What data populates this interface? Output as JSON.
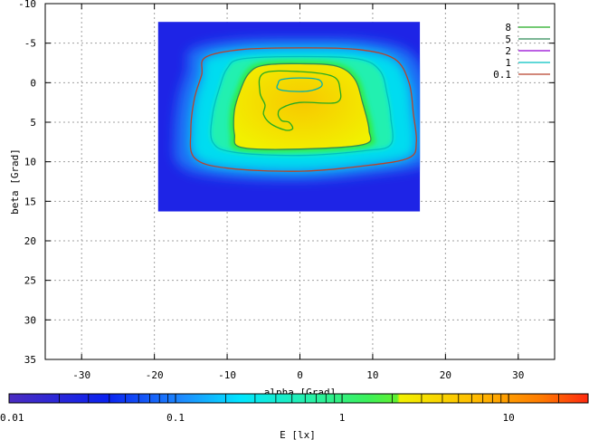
{
  "chart_data": {
    "type": "heatmap",
    "title": "",
    "xlabel": "alpha [Grad]",
    "ylabel": "beta [Grad]",
    "xlim": [
      -35,
      35
    ],
    "ylim": [
      -10,
      35
    ],
    "y_inverted": true,
    "grid": true,
    "x_ticks": [
      -30,
      -20,
      -10,
      0,
      10,
      20,
      30
    ],
    "y_ticks": [
      -10,
      -5,
      0,
      5,
      10,
      15,
      20,
      25,
      30,
      35
    ],
    "data_extent": {
      "alpha": [
        -19.5,
        16.5
      ],
      "beta": [
        -7.7,
        16.3
      ]
    },
    "peak": {
      "alpha": -1,
      "beta": 0.3
    },
    "legend": {
      "placement": "top-right",
      "entries": [
        {
          "label": "8",
          "color": "#22aa22"
        },
        {
          "label": "5",
          "color": "#2e8b57"
        },
        {
          "label": "2",
          "color": "#9400d3"
        },
        {
          "label": "1",
          "color": "#00c0c0"
        },
        {
          "label": "0.1",
          "color": "#b8422a"
        }
      ]
    },
    "contours": [
      {
        "level": 0.1,
        "color": "#b8422a",
        "points": [
          [
            -13,
            -3.2
          ],
          [
            -8,
            -4.2
          ],
          [
            0,
            -4.4
          ],
          [
            8,
            -4.2
          ],
          [
            13,
            -3.0
          ],
          [
            15,
            0
          ],
          [
            15.6,
            4
          ],
          [
            16.0,
            7.5
          ],
          [
            15.0,
            9.5
          ],
          [
            9,
            10.5
          ],
          [
            0,
            11.2
          ],
          [
            -10,
            10.8
          ],
          [
            -14.5,
            9.5
          ],
          [
            -15,
            6
          ],
          [
            -14.5,
            2
          ],
          [
            -13.5,
            -1
          ]
        ]
      },
      {
        "level": 1,
        "color": "#00c0c0",
        "points": [
          [
            -8,
            -3.0
          ],
          [
            0,
            -3.3
          ],
          [
            8,
            -3.0
          ],
          [
            11,
            -1.5
          ],
          [
            12,
            1.5
          ],
          [
            12.5,
            4.5
          ],
          [
            12.5,
            7.8
          ],
          [
            9,
            8.6
          ],
          [
            0,
            9.2
          ],
          [
            -9,
            8.8
          ],
          [
            -12,
            7.5
          ],
          [
            -12,
            4.0
          ],
          [
            -11,
            0.5
          ],
          [
            -10,
            -1.8
          ]
        ]
      },
      {
        "level": 5,
        "color": "#2e8b57",
        "points": [
          [
            -5,
            -2.2
          ],
          [
            0,
            -2.4
          ],
          [
            5,
            -2.1
          ],
          [
            7.5,
            -0.5
          ],
          [
            8.6,
            2.5
          ],
          [
            9.5,
            6.0
          ],
          [
            8.8,
            7.8
          ],
          [
            0,
            8.4
          ],
          [
            -8,
            8.2
          ],
          [
            -9,
            6.5
          ],
          [
            -9,
            3.5
          ],
          [
            -8.2,
            1.0
          ],
          [
            -7.0,
            -1.2
          ]
        ]
      },
      {
        "level": 8,
        "color": "#22aa22",
        "points": [
          [
            -5,
            -1.2
          ],
          [
            0,
            -1.4
          ],
          [
            4.5,
            -0.8
          ],
          [
            5.5,
            0.8
          ],
          [
            5,
            2.5
          ],
          [
            0,
            2.5
          ],
          [
            -2.5,
            3.2
          ],
          [
            -3,
            4.0
          ],
          [
            -2.5,
            4.8
          ],
          [
            -1.5,
            5.0
          ],
          [
            -1,
            5.8
          ],
          [
            -2,
            6.0
          ],
          [
            -4,
            5.2
          ],
          [
            -5,
            4.0
          ],
          [
            -4.8,
            2.8
          ],
          [
            -5.5,
            1.2
          ]
        ]
      },
      {
        "level": 8,
        "color": "#00b0b0",
        "points": [
          [
            -2.5,
            -0.4
          ],
          [
            0,
            -0.6
          ],
          [
            2.5,
            -0.4
          ],
          [
            3,
            0.4
          ],
          [
            1.5,
            1.0
          ],
          [
            -1,
            1.1
          ],
          [
            -3,
            0.8
          ],
          [
            -3,
            0.1
          ]
        ]
      }
    ],
    "colorbar": {
      "label": "E [lx]",
      "scale": "log",
      "range": [
        0.01,
        30
      ],
      "tick_labels": [
        "0.01",
        "0.1",
        "1",
        "10"
      ],
      "tick_values": [
        0.01,
        0.1,
        1,
        10
      ]
    }
  }
}
